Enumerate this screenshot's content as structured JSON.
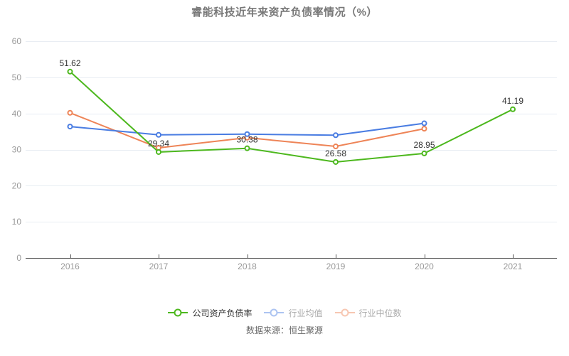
{
  "chart_data": {
    "type": "line",
    "title": "睿能科技近年来资产负债率情况（%）",
    "source": "数据来源：恒生聚源",
    "categories": [
      "2016",
      "2017",
      "2018",
      "2019",
      "2020",
      "2021"
    ],
    "series": [
      {
        "name": "公司资产负债率",
        "color": "#4db81e",
        "values": [
          51.62,
          29.34,
          30.38,
          26.58,
          28.95,
          41.19
        ],
        "point_labels": [
          "51.62",
          "29.34",
          "30.38",
          "26.58",
          "28.95",
          "41.19"
        ],
        "legend_faded": false
      },
      {
        "name": "行业均值",
        "color": "#4a7de2",
        "values": [
          36.4,
          34.1,
          34.3,
          34.0,
          37.3,
          null
        ],
        "point_labels": null,
        "legend_faded": true
      },
      {
        "name": "行业中位数",
        "color": "#ee8457",
        "values": [
          40.2,
          30.5,
          33.3,
          30.9,
          35.8,
          null
        ],
        "point_labels": null,
        "legend_faded": true
      }
    ],
    "ylim": [
      0,
      60
    ],
    "yticks": [
      0,
      10,
      20,
      30,
      40,
      50,
      60
    ],
    "grid": true,
    "legend_position": "bottom",
    "colors": {
      "grid_line": "#e8edf3",
      "axis_line": "#555555",
      "axis_label": "#999999",
      "value_label": "#333333",
      "title_text": "#777777",
      "source_text": "#666666",
      "legend_faded_text": "#aaaaaa"
    }
  }
}
